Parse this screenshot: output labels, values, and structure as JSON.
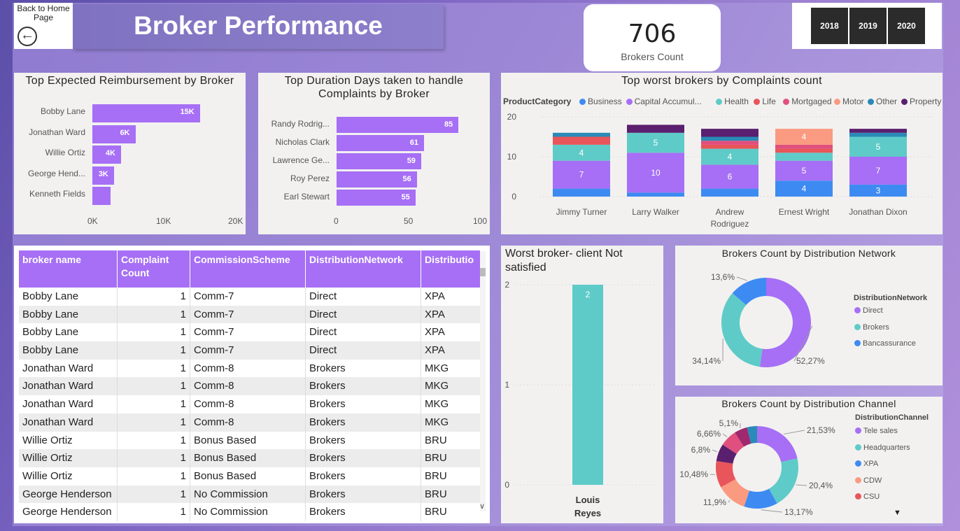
{
  "header": {
    "home_label": "Back to Home Page",
    "title": "Broker Performance",
    "kpi_value": "706",
    "kpi_label": "Brokers Count",
    "years": [
      "2018",
      "2019",
      "2020"
    ]
  },
  "reimb_chart": {
    "title": "Top Expected Reimbursement by Broker",
    "ticks": [
      "0K",
      "10K",
      "20K"
    ]
  },
  "duration_chart": {
    "title_line1": "Top Duration Days taken to handle",
    "title_line2": "Complaints by Broker",
    "ticks": [
      "0",
      "50",
      "100"
    ]
  },
  "complaints_chart": {
    "title": "Top worst brokers by Complaints count",
    "legend_title": "ProductCategory",
    "ticks": [
      "20",
      "10",
      "0"
    ]
  },
  "table": {
    "headers": [
      "broker name",
      "Complaint Count",
      "CommissionScheme",
      "DistributionNetwork",
      "Distributio"
    ],
    "rows": [
      [
        "Bobby Lane",
        "1",
        "Comm-7",
        "Direct",
        "XPA"
      ],
      [
        "Bobby Lane",
        "1",
        "Comm-7",
        "Direct",
        "XPA"
      ],
      [
        "Bobby Lane",
        "1",
        "Comm-7",
        "Direct",
        "XPA"
      ],
      [
        "Bobby Lane",
        "1",
        "Comm-7",
        "Direct",
        "XPA"
      ],
      [
        "Jonathan Ward",
        "1",
        "Comm-8",
        "Brokers",
        "MKG"
      ],
      [
        "Jonathan Ward",
        "1",
        "Comm-8",
        "Brokers",
        "MKG"
      ],
      [
        "Jonathan Ward",
        "1",
        "Comm-8",
        "Brokers",
        "MKG"
      ],
      [
        "Jonathan Ward",
        "1",
        "Comm-8",
        "Brokers",
        "MKG"
      ],
      [
        "Willie Ortiz",
        "1",
        "Bonus Based",
        "Brokers",
        "BRU"
      ],
      [
        "Willie Ortiz",
        "1",
        "Bonus Based",
        "Brokers",
        "BRU"
      ],
      [
        "Willie Ortiz",
        "1",
        "Bonus Based",
        "Brokers",
        "BRU"
      ],
      [
        "George Henderson",
        "1",
        "No Commission",
        "Brokers",
        "BRU"
      ],
      [
        "George Henderson",
        "1",
        "No Commission",
        "Brokers",
        "BRU"
      ]
    ]
  },
  "worst_chart": {
    "title_line1": "Worst broker- client Not",
    "title_line2": "satisfied",
    "ticks": [
      "2",
      "1",
      "0"
    ],
    "cat_line1": "Louis",
    "cat_line2": "Reyes"
  },
  "network_chart": {
    "title": "Brokers Count by Distribution Network",
    "legend_title": "DistributionNetwork"
  },
  "channel_chart": {
    "title": "Brokers Count by Distribution Channel",
    "legend_title": "DistributionChannel"
  },
  "colors": {
    "purple": "#a66ff5",
    "teal": "#5ecbc8",
    "blue": "#3d8bf2",
    "red": "#e8555a",
    "pink": "#e04f7d",
    "salmon": "#fa9a80",
    "steel": "#2a8ab8",
    "darkpurple": "#5a1f6e"
  },
  "chart_data": [
    {
      "type": "bar",
      "orientation": "horizontal",
      "title": "Top Expected Reimbursement by Broker",
      "categories": [
        "Bobby Lane",
        "Jonathan Ward",
        "Willie Ortiz",
        "George Hend...",
        "Kenneth Fields"
      ],
      "values": [
        15000,
        6000,
        4000,
        3000,
        2500
      ],
      "labels": [
        "15K",
        "6K",
        "4K",
        "3K",
        ""
      ],
      "xlim": [
        0,
        20000
      ]
    },
    {
      "type": "bar",
      "orientation": "horizontal",
      "title": "Top Duration Days taken to handle Complaints by Broker",
      "categories": [
        "Randy Rodrig...",
        "Nicholas Clark",
        "Lawrence Ge...",
        "Roy Perez",
        "Earl Stewart"
      ],
      "values": [
        85,
        61,
        59,
        56,
        55
      ],
      "xlim": [
        0,
        100
      ]
    },
    {
      "type": "bar",
      "stacked": true,
      "title": "Top worst brokers by Complaints count",
      "categories": [
        "Jimmy Turner",
        "Larry Walker",
        "Andrew Rodriguez",
        "Ernest Wright",
        "Jonathan Dixon"
      ],
      "category_lines": [
        [
          "Jimmy Turner"
        ],
        [
          "Larry Walker"
        ],
        [
          "Andrew",
          "Rodriguez"
        ],
        [
          "Ernest Wright"
        ],
        [
          "Jonathan Dixon"
        ]
      ],
      "ylim": [
        0,
        20
      ],
      "series": [
        {
          "name": "Business",
          "color": "#3d8bf2",
          "values": [
            2,
            1,
            2,
            4,
            3
          ]
        },
        {
          "name": "Capital Accumul...",
          "color": "#a66ff5",
          "values": [
            7,
            10,
            6,
            5,
            7
          ]
        },
        {
          "name": "Health",
          "color": "#5ecbc8",
          "values": [
            4,
            5,
            4,
            2,
            5
          ]
        },
        {
          "name": "Life",
          "color": "#e8555a",
          "values": [
            2,
            0,
            1,
            1,
            0
          ]
        },
        {
          "name": "Mortgaged",
          "color": "#e04f7d",
          "values": [
            0,
            0,
            1,
            1,
            0
          ]
        },
        {
          "name": "Motor",
          "color": "#fa9a80",
          "values": [
            0,
            0,
            0,
            4,
            0
          ]
        },
        {
          "name": "Other",
          "color": "#2a8ab8",
          "values": [
            1,
            0,
            1,
            0,
            1
          ]
        },
        {
          "name": "Property",
          "color": "#5a1f6e",
          "values": [
            0,
            2,
            2,
            0,
            1
          ]
        }
      ],
      "shown_labels": [
        "4",
        "7",
        "5",
        "10",
        "4",
        "6",
        "4",
        "5",
        "4",
        "5",
        "7",
        "3"
      ]
    },
    {
      "type": "bar",
      "title": "Worst broker- client Not satisfied",
      "categories": [
        "Louis Reyes"
      ],
      "values": [
        2
      ],
      "ylim": [
        0,
        2
      ]
    },
    {
      "type": "pie",
      "donut": true,
      "title": "Brokers Count by Distribution Network",
      "slices": [
        {
          "name": "Direct",
          "value": 52.27,
          "label": "52,27%",
          "color": "#a66ff5"
        },
        {
          "name": "Brokers",
          "value": 34.14,
          "label": "34,14%",
          "color": "#5ecbc8"
        },
        {
          "name": "Bancassurance",
          "value": 13.6,
          "label": "13,6%",
          "color": "#3d8bf2"
        }
      ]
    },
    {
      "type": "pie",
      "donut": true,
      "title": "Brokers Count by Distribution Channel",
      "slices": [
        {
          "name": "Tele sales",
          "value": 21.53,
          "label": "21,53%",
          "color": "#a66ff5"
        },
        {
          "name": "Headquarters",
          "value": 20.4,
          "label": "20,4%",
          "color": "#5ecbc8"
        },
        {
          "name": "XPA",
          "value": 13.17,
          "label": "13,17%",
          "color": "#3d8bf2"
        },
        {
          "name": "CDW",
          "value": 11.9,
          "label": "11,9%",
          "color": "#fa9a80"
        },
        {
          "name": "CSU",
          "value": 10.48,
          "label": "10,48%",
          "color": "#e8555a"
        },
        {
          "name": "",
          "value": 6.8,
          "label": "6,8%",
          "color": "#5a1f6e"
        },
        {
          "name": "",
          "value": 6.66,
          "label": "6,66%",
          "color": "#e04f7d"
        },
        {
          "name": "",
          "value": 5.1,
          "label": "5,1%",
          "color": "#a0286e"
        },
        {
          "name": "",
          "value": 3.96,
          "label": "",
          "color": "#2a8ab8"
        }
      ]
    }
  ]
}
